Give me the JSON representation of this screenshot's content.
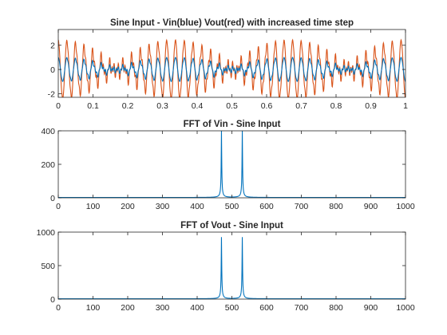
{
  "figure": {
    "background": "#ffffff"
  },
  "chart_data": [
    {
      "type": "line",
      "title": "Sine Input - Vin(blue) Vout(red) with increased time step",
      "xlabel": "",
      "ylabel": "",
      "xlim": [
        0,
        1
      ],
      "ylim": [
        -2.3,
        3.3
      ],
      "xticks": [
        0,
        0.1,
        0.2,
        0.3,
        0.4,
        0.5,
        0.6,
        0.7,
        0.8,
        0.9,
        1
      ],
      "xtick_labels": [
        "0",
        "0.1",
        "0.2",
        "0.3",
        "0.4",
        "0.5",
        "0.6",
        "0.7",
        "0.8",
        "0.9",
        "1"
      ],
      "yticks": [
        -2,
        0,
        2
      ],
      "ytick_labels": [
        "-2",
        "0",
        "2"
      ],
      "grid": false,
      "series": [
        {
          "color": "#d95319",
          "function": "sine_beat",
          "amplitude": 2.45,
          "frequencies_hz": [
            470,
            530
          ],
          "sampled_cycles_per_unit": 40,
          "offset": 0
        },
        {
          "color": "#0072bd",
          "function": "sine_beat",
          "amplitude": 1.0,
          "frequencies_hz": [
            470,
            530
          ],
          "sampled_cycles_per_unit": 40,
          "offset": 0
        }
      ]
    },
    {
      "type": "line",
      "title": "FFT of Vin - Sine Input",
      "xlabel": "",
      "ylabel": "",
      "xlim": [
        0,
        1000
      ],
      "ylim": [
        0,
        400
      ],
      "xticks": [
        0,
        100,
        200,
        300,
        400,
        500,
        600,
        700,
        800,
        900,
        1000
      ],
      "xtick_labels": [
        "0",
        "100",
        "200",
        "300",
        "400",
        "500",
        "600",
        "700",
        "800",
        "900",
        "1000"
      ],
      "yticks": [
        0,
        200,
        400
      ],
      "ytick_labels": [
        "0",
        "200",
        "400"
      ],
      "grid": false,
      "series": [
        {
          "color": "#0072bd",
          "peaks": [
            {
              "x": 470,
              "y": 400
            },
            {
              "x": 530,
              "y": 400
            }
          ],
          "baseline": 2
        }
      ]
    },
    {
      "type": "line",
      "title": "FFT of Vout - Sine Input",
      "xlabel": "",
      "ylabel": "",
      "xlim": [
        0,
        1000
      ],
      "ylim": [
        0,
        1000
      ],
      "xticks": [
        0,
        100,
        200,
        300,
        400,
        500,
        600,
        700,
        800,
        900,
        1000
      ],
      "xtick_labels": [
        "0",
        "100",
        "200",
        "300",
        "400",
        "500",
        "600",
        "700",
        "800",
        "900",
        "1000"
      ],
      "yticks": [
        0,
        500,
        1000
      ],
      "ytick_labels": [
        "0",
        "500",
        "1000"
      ],
      "grid": false,
      "series": [
        {
          "color": "#0072bd",
          "peaks": [
            {
              "x": 470,
              "y": 920
            },
            {
              "x": 530,
              "y": 920
            }
          ],
          "baseline": 5
        }
      ]
    }
  ]
}
